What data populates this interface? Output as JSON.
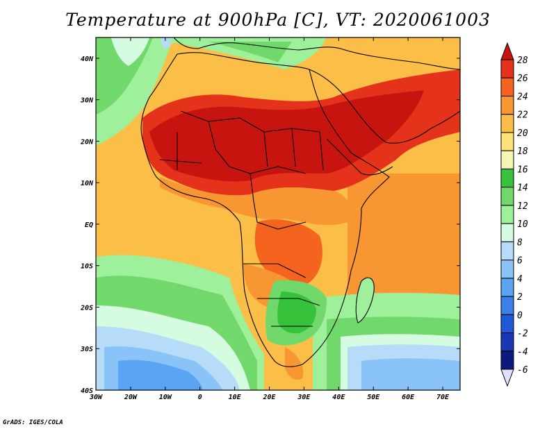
{
  "title": "Temperature at 900hPa [C], VT: 2020061003",
  "credit": "GrADS: IGES/COLA",
  "map": {
    "lon_range": [
      -30,
      75
    ],
    "lat_range": [
      -40,
      45
    ],
    "lon_ticks": [
      "30W",
      "20W",
      "10W",
      "0",
      "10E",
      "20E",
      "30E",
      "40E",
      "50E",
      "60E",
      "70E"
    ],
    "lat_ticks": [
      "40S",
      "30S",
      "20S",
      "10S",
      "EQ",
      "10N",
      "20N",
      "30N",
      "40N"
    ],
    "variable": "Temperature at 900hPa",
    "units": "C",
    "valid_time": "2020061003"
  },
  "colorbar": {
    "levels": [
      "28",
      "26",
      "24",
      "22",
      "20",
      "18",
      "16",
      "14",
      "12",
      "10",
      "8",
      "6",
      "4",
      "2",
      "0",
      "-2",
      "-4",
      "-6"
    ],
    "colors": [
      "#c8140f",
      "#e5321b",
      "#f5641f",
      "#f89631",
      "#fbbe47",
      "#fde27a",
      "#f5f5b4",
      "#37c23b",
      "#71d96b",
      "#9ff09a",
      "#d5fbe0",
      "#b7dcfa",
      "#8ac3f7",
      "#5aa4f1",
      "#3a80e8",
      "#1e5ad8",
      "#1838b5",
      "#0c1a80",
      "#e1e1ff"
    ]
  }
}
